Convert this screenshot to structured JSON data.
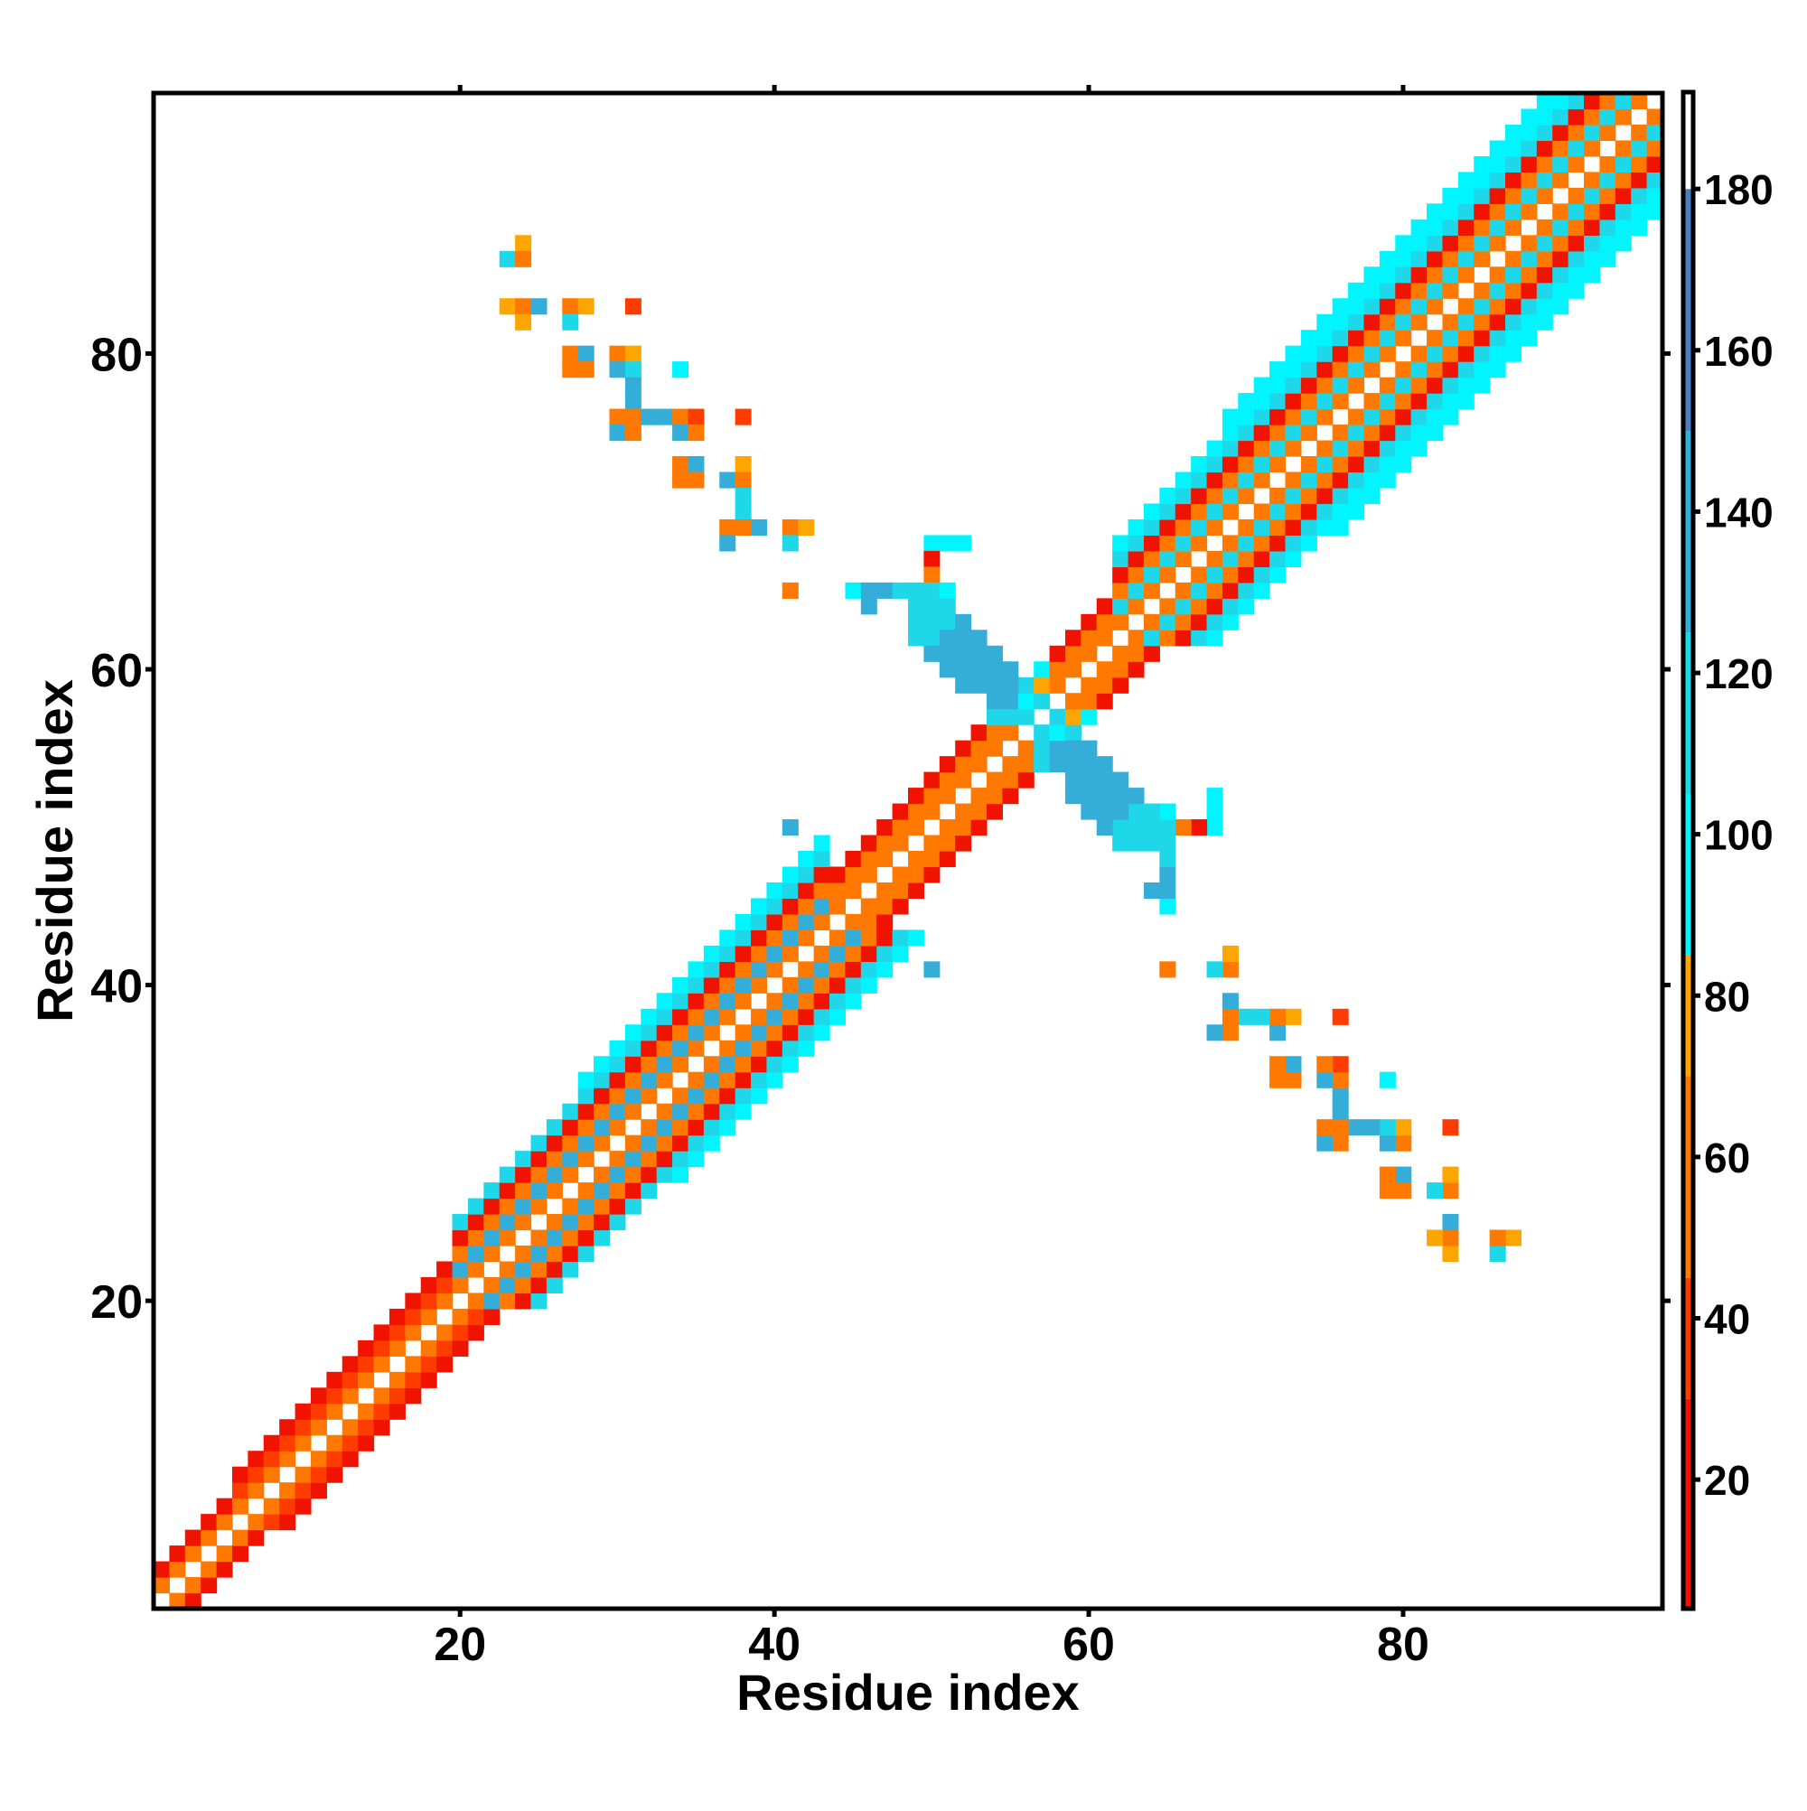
{
  "chart_data": {
    "type": "heatmap",
    "symmetric": true,
    "n_residues": 96,
    "xlabel": "Residue index",
    "ylabel": "Residue index",
    "xlim": [
      0.5,
      96.5
    ],
    "ylim": [
      0.5,
      96.5
    ],
    "xticks": [
      {
        "value": 20,
        "label": "20"
      },
      {
        "value": 40,
        "label": "40"
      },
      {
        "value": 60,
        "label": "60"
      },
      {
        "value": 80,
        "label": "80"
      }
    ],
    "yticks": [
      {
        "value": 20,
        "label": "20"
      },
      {
        "value": 40,
        "label": "40"
      },
      {
        "value": 60,
        "label": "60"
      },
      {
        "value": 80,
        "label": "80"
      }
    ],
    "colorbar": {
      "range": [
        4,
        192
      ],
      "ticks": [
        {
          "value": 20,
          "label": "20"
        },
        {
          "value": 40,
          "label": "40"
        },
        {
          "value": 60,
          "label": "60"
        },
        {
          "value": 80,
          "label": "80"
        },
        {
          "value": 100,
          "label": "100"
        },
        {
          "value": 120,
          "label": "120"
        },
        {
          "value": 140,
          "label": "140"
        },
        {
          "value": 160,
          "label": "160"
        },
        {
          "value": 180,
          "label": "180"
        }
      ],
      "bins": [
        {
          "min": 4,
          "max": 30,
          "color": "#f01400"
        },
        {
          "min": 30,
          "max": 45,
          "color": "#ff3c00"
        },
        {
          "min": 45,
          "max": 70,
          "color": "#ff7800"
        },
        {
          "min": 70,
          "max": 85,
          "color": "#ffa500"
        },
        {
          "min": 85,
          "max": 105,
          "color": "#00f5ff"
        },
        {
          "min": 105,
          "max": 125,
          "color": "#1ed8ea"
        },
        {
          "min": 125,
          "max": 150,
          "color": "#34aed8"
        },
        {
          "min": 150,
          "max": 180,
          "color": "#4a80c0"
        },
        {
          "min": 180,
          "max": 192,
          "color": "#ffffff"
        }
      ]
    },
    "band_segments": [
      {
        "from": 1,
        "to": 5,
        "offset_values": [
          55,
          30
        ]
      },
      {
        "from": 6,
        "to": 12,
        "offset_values": [
          55,
          35,
          22
        ]
      },
      {
        "from": 13,
        "to": 19,
        "offset_values": [
          55,
          45,
          25
        ]
      },
      {
        "from": 20,
        "to": 27,
        "offset_values": [
          55,
          130,
          55,
          28,
          120
        ]
      },
      {
        "from": 28,
        "to": 43,
        "offset_values": [
          55,
          130,
          55,
          28,
          120,
          100
        ]
      },
      {
        "from": 44,
        "to": 61,
        "offset_values": [
          55,
          50,
          25
        ]
      },
      {
        "from": 62,
        "to": 68,
        "offset_values": [
          55,
          125,
          55,
          28,
          120,
          100
        ]
      },
      {
        "from": 69,
        "to": 90,
        "offset_values": [
          55,
          125,
          55,
          28,
          120,
          100,
          100
        ]
      },
      {
        "from": 91,
        "to": 95,
        "offset_values": [
          55,
          125,
          55,
          28,
          120,
          100
        ]
      }
    ],
    "contacts": [
      [
        24,
        87,
        75
      ],
      [
        23,
        86,
        125
      ],
      [
        24,
        86,
        55
      ],
      [
        23,
        83,
        75
      ],
      [
        24,
        83,
        55
      ],
      [
        25,
        83,
        130
      ],
      [
        27,
        83,
        55
      ],
      [
        28,
        83,
        75
      ],
      [
        31,
        83,
        40
      ],
      [
        24,
        82,
        75
      ],
      [
        27,
        82,
        110
      ],
      [
        27,
        80,
        55
      ],
      [
        28,
        80,
        130
      ],
      [
        30,
        80,
        55
      ],
      [
        31,
        80,
        75
      ],
      [
        27,
        79,
        55
      ],
      [
        28,
        79,
        55
      ],
      [
        30,
        79,
        130
      ],
      [
        31,
        79,
        110
      ],
      [
        34,
        79,
        100
      ],
      [
        31,
        78,
        130
      ],
      [
        31,
        77,
        130
      ],
      [
        30,
        76,
        55
      ],
      [
        31,
        76,
        55
      ],
      [
        32,
        76,
        130
      ],
      [
        33,
        76,
        130
      ],
      [
        34,
        76,
        55
      ],
      [
        35,
        76,
        45
      ],
      [
        38,
        76,
        45
      ],
      [
        30,
        75,
        140
      ],
      [
        31,
        75,
        55
      ],
      [
        34,
        75,
        130
      ],
      [
        35,
        75,
        55
      ],
      [
        34,
        73,
        55
      ],
      [
        35,
        73,
        130
      ],
      [
        38,
        73,
        75
      ],
      [
        34,
        72,
        55
      ],
      [
        35,
        72,
        55
      ],
      [
        37,
        72,
        130
      ],
      [
        38,
        72,
        55
      ],
      [
        38,
        71,
        120
      ],
      [
        38,
        70,
        120
      ],
      [
        37,
        69,
        55
      ],
      [
        38,
        69,
        55
      ],
      [
        39,
        69,
        135
      ],
      [
        41,
        69,
        55
      ],
      [
        42,
        69,
        75
      ],
      [
        37,
        68,
        135
      ],
      [
        41,
        68,
        110
      ],
      [
        41,
        65,
        55
      ],
      [
        41,
        50,
        140
      ],
      [
        50,
        68,
        100
      ],
      [
        51,
        68,
        100
      ],
      [
        52,
        68,
        100
      ],
      [
        50,
        67,
        30
      ],
      [
        50,
        66,
        55
      ],
      [
        45,
        65,
        100
      ],
      [
        46,
        65,
        145
      ],
      [
        47,
        65,
        145
      ],
      [
        48,
        65,
        125
      ],
      [
        49,
        65,
        110
      ],
      [
        50,
        65,
        110
      ],
      [
        51,
        65,
        100
      ],
      [
        46,
        64,
        145
      ],
      [
        49,
        64,
        120
      ],
      [
        50,
        64,
        120
      ],
      [
        51,
        64,
        125
      ],
      [
        49,
        63,
        115
      ],
      [
        50,
        63,
        120
      ],
      [
        51,
        63,
        125
      ],
      [
        52,
        63,
        130
      ],
      [
        49,
        62,
        110
      ],
      [
        50,
        62,
        120
      ],
      [
        51,
        62,
        130
      ],
      [
        52,
        62,
        130
      ],
      [
        53,
        62,
        130
      ],
      [
        50,
        61,
        140
      ],
      [
        51,
        61,
        140
      ],
      [
        52,
        61,
        140
      ],
      [
        53,
        61,
        140
      ],
      [
        54,
        61,
        140
      ],
      [
        51,
        60,
        140
      ],
      [
        52,
        60,
        140
      ],
      [
        53,
        60,
        140
      ],
      [
        54,
        60,
        140
      ],
      [
        55,
        60,
        140
      ],
      [
        57,
        60,
        100
      ],
      [
        52,
        59,
        140
      ],
      [
        53,
        59,
        140
      ],
      [
        54,
        59,
        140
      ],
      [
        55,
        59,
        140
      ],
      [
        56,
        59,
        125
      ],
      [
        57,
        59,
        75
      ],
      [
        58,
        59,
        55
      ],
      [
        54,
        58,
        140
      ],
      [
        55,
        58,
        140
      ],
      [
        56,
        58,
        105
      ],
      [
        57,
        58,
        120
      ],
      [
        54,
        57,
        125
      ],
      [
        55,
        57,
        125
      ],
      [
        56,
        57,
        120
      ]
    ]
  }
}
